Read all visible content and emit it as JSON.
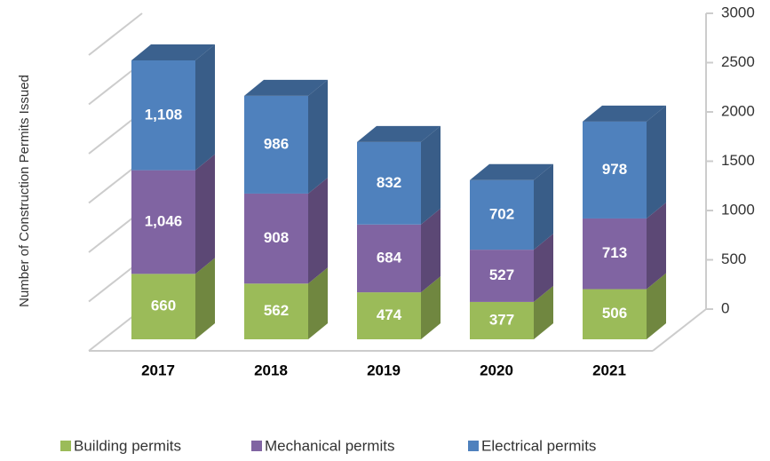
{
  "chart_data": {
    "type": "stacked_bar_3d",
    "y_label": "Number of Construction Permits Issued",
    "categories": [
      "2017",
      "2018",
      "2019",
      "2020",
      "2021"
    ],
    "series": [
      {
        "name": "Building permits",
        "color": "#9bbb59",
        "values": [
          660,
          562,
          474,
          377,
          506
        ]
      },
      {
        "name": "Mechanical permits",
        "color": "#8064a2",
        "values": [
          1046,
          908,
          684,
          527,
          713
        ],
        "value_labels": [
          "1,046",
          "908",
          "684",
          "527",
          "713"
        ]
      },
      {
        "name": "Electrical permits",
        "color": "#4f81bd",
        "values": [
          1108,
          986,
          832,
          702,
          978
        ],
        "value_labels": [
          "1,108",
          "986",
          "832",
          "702",
          "978"
        ]
      }
    ],
    "ylim": [
      0,
      3000
    ],
    "yticks": [
      0,
      500,
      1000,
      1500,
      2000,
      2500,
      3000
    ],
    "y_axis_side": "right",
    "grid": true,
    "legend": "bottom"
  }
}
